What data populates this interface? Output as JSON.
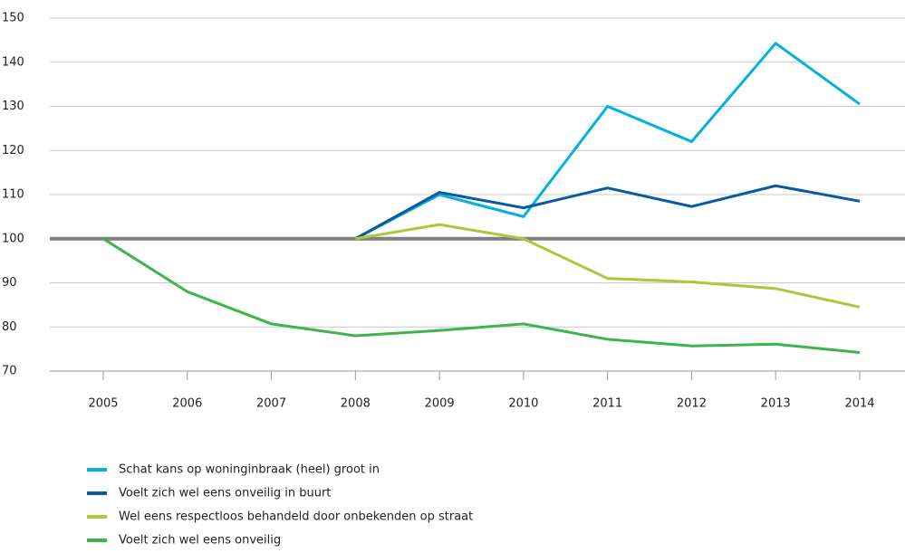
{
  "chart_data": {
    "type": "line",
    "categories": [
      "2005",
      "2006",
      "2007",
      "2008",
      "2009",
      "2010",
      "2011",
      "2012",
      "2013",
      "2014"
    ],
    "series": [
      {
        "name": "Schat kans op woninginbraak (heel) groot in",
        "color": "#00b1e1",
        "values": [
          null,
          null,
          null,
          100,
          110,
          105,
          130,
          122,
          144.3,
          130.5
        ]
      },
      {
        "name": "Voelt zich wel eens onveilig in buurt",
        "color": "#0a5aa0",
        "values": [
          null,
          null,
          null,
          100,
          110.5,
          107,
          111.5,
          107.3,
          112,
          108.5
        ]
      },
      {
        "name": "Wel eens respectloos behandeld door onbekenden op straat",
        "color": "#a9c938",
        "values": [
          null,
          null,
          null,
          100,
          103.2,
          100,
          91,
          90.2,
          88.7,
          84.5
        ]
      },
      {
        "name": "Voelt zich wel eens onveilig",
        "color": "#3cb54a",
        "values": [
          100,
          88,
          80.7,
          78,
          79.2,
          80.7,
          77.2,
          75.7,
          76.1,
          74.2
        ]
      }
    ],
    "ylim": [
      70,
      150
    ],
    "yticks": [
      70,
      80,
      90,
      100,
      110,
      120,
      130,
      140,
      150
    ],
    "grid": true,
    "reference_value": 100,
    "legend": "bottom-left"
  }
}
